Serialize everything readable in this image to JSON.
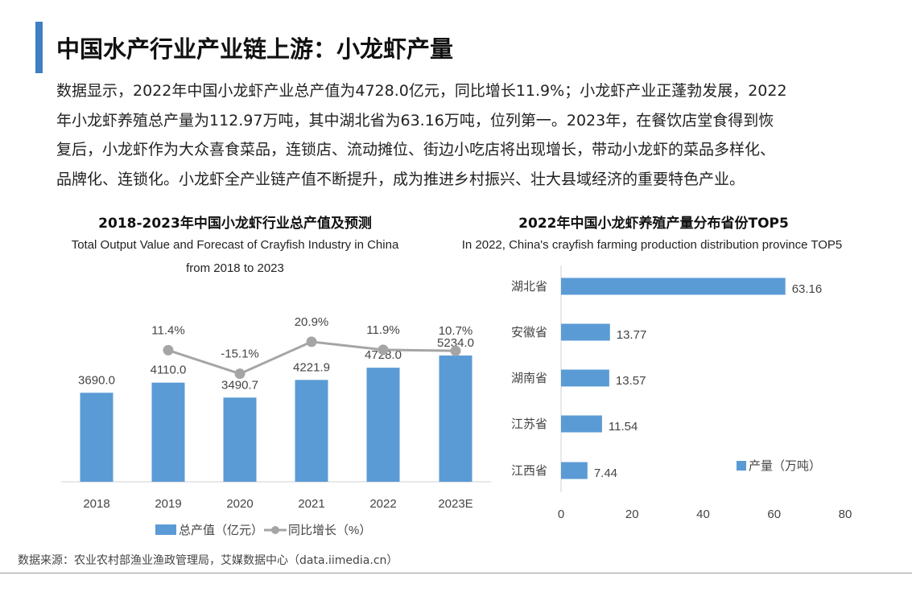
{
  "header": {
    "title": "中国水产行业产业链上游：小龙虾产量",
    "body_lines": [
      "数据显示，2022年中国小龙虾产业总产值为4728.0亿元，同比增长11.9%；小龙虾产业正蓬勃发展，2022",
      "年小龙虾养殖总产量为112.97万吨，其中湖北省为63.16万吨，位列第一。2023年，在餐饮店堂食得到恢",
      "复后，小龙虾作为大众喜食菜品，连锁店、流动摊位、街边小吃店将出现增长，带动小龙虾的菜品多样化、",
      "品牌化、连锁化。小龙虾全产业链产值不断提升，成为推进乡村振兴、壮大县域经济的重要特色产业。"
    ]
  },
  "colors": {
    "accent": "#3f7fc4",
    "bar": "#5b9bd5",
    "line": "#a5a5a5"
  },
  "chart_data": [
    {
      "type": "bar",
      "title": "2018-2023年中国小龙虾行业总产值及预测",
      "subtitle_line1": "Total Output Value and Forecast of Crayfish Industry in China",
      "subtitle_line2": "from 2018 to 2023",
      "categories": [
        "2018",
        "2019",
        "2020",
        "2021",
        "2022",
        "2023E"
      ],
      "series": [
        {
          "name": "总产值（亿元）",
          "type": "bar",
          "values": [
            3690.0,
            4110.0,
            3490.7,
            4221.9,
            4728.0,
            5234.0
          ]
        },
        {
          "name": "同比增长（%）",
          "type": "line",
          "values": [
            null,
            11.4,
            -15.1,
            20.9,
            11.9,
            10.7
          ]
        }
      ],
      "bar_labels": [
        "3690.0",
        "4110.0",
        "3490.7",
        "4221.9",
        "4728.0",
        "5234.0"
      ],
      "line_labels": [
        "",
        "11.4%",
        "-15.1%",
        "20.9%",
        "11.9%",
        "10.7%"
      ],
      "legend_position": "bottom",
      "grid": false
    },
    {
      "type": "bar",
      "orientation": "horizontal",
      "title": "2022年中国小龙虾养殖产量分布省份TOP5",
      "subtitle": "In 2022, China's crayfish farming production distribution province TOP5",
      "categories": [
        "湖北省",
        "安徽省",
        "湖南省",
        "江苏省",
        "江西省"
      ],
      "series": [
        {
          "name": "产量（万吨）",
          "values": [
            63.16,
            13.77,
            13.57,
            11.54,
            7.44
          ]
        }
      ],
      "xlim": [
        0,
        80
      ],
      "xticks": [
        "0",
        "20",
        "40",
        "60",
        "80"
      ],
      "legend_position": "bottom-right",
      "grid": false
    }
  ],
  "source": "数据来源：农业农村部渔业渔政管理局，艾媒数据中心（data.iimedia.cn）"
}
